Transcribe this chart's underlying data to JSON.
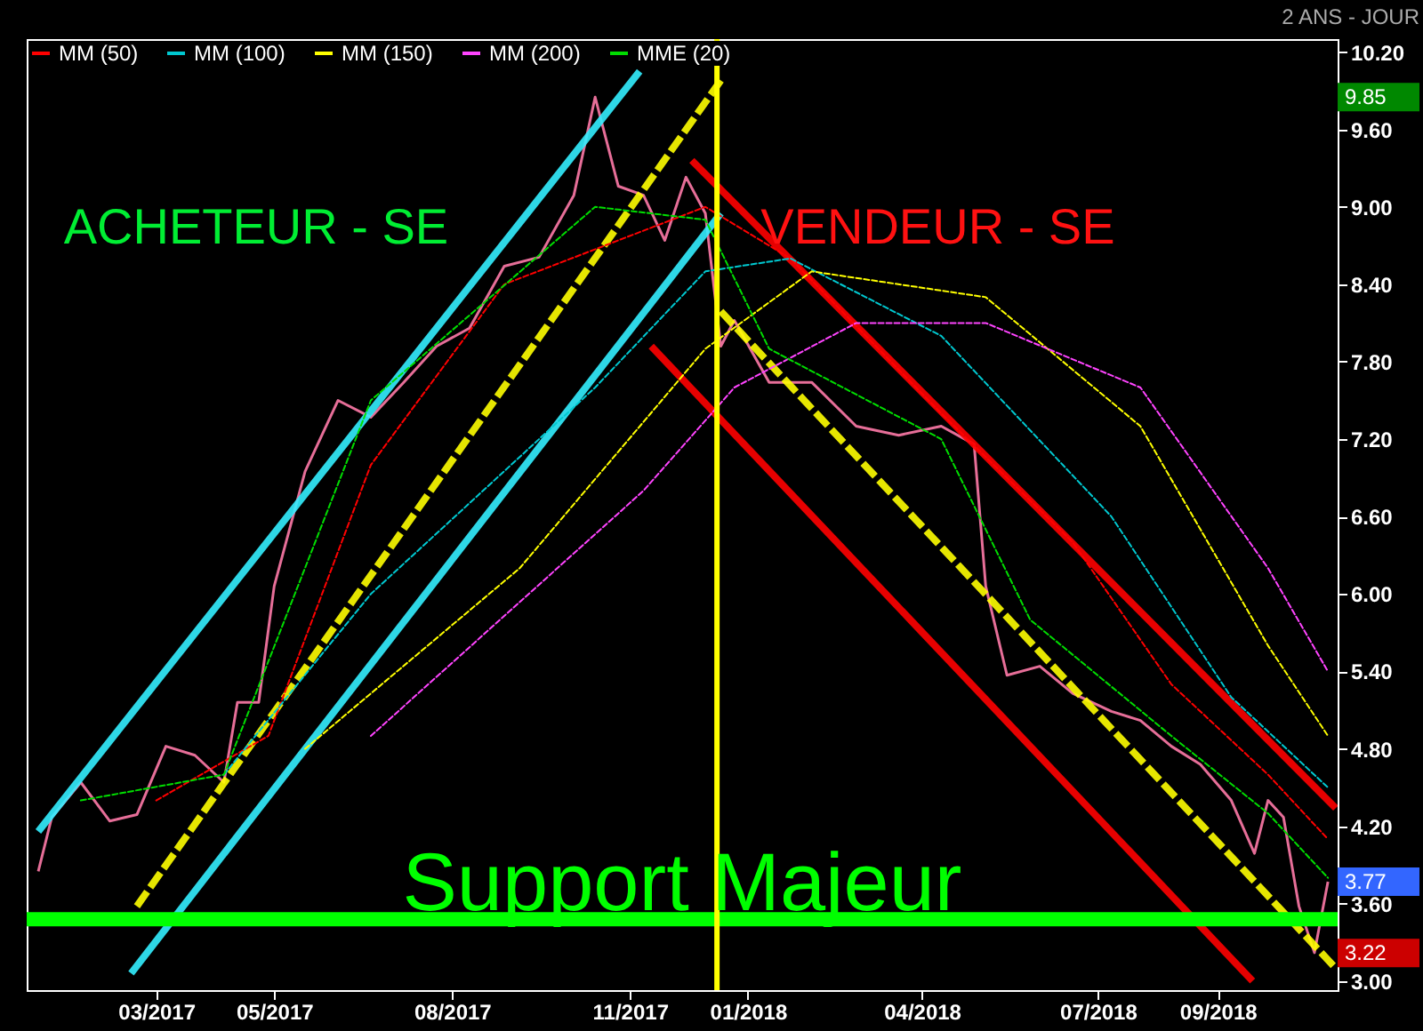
{
  "chart_data": {
    "type": "line",
    "title": "2 ANS - JOUR",
    "xlim": [
      "2016-12-24",
      "2018-11-02"
    ],
    "xticks": [
      {
        "value": "2017-03-01",
        "label": "03/2017"
      },
      {
        "value": "2017-05-01",
        "label": "05/2017"
      },
      {
        "value": "2017-08-01",
        "label": "08/2017"
      },
      {
        "value": "2017-11-01",
        "label": "11/2017"
      },
      {
        "value": "2018-01-01",
        "label": "01/2018"
      },
      {
        "value": "2018-04-01",
        "label": "04/2018"
      },
      {
        "value": "2018-07-01",
        "label": "07/2018"
      },
      {
        "value": "2018-09-01",
        "label": "09/2018"
      }
    ],
    "ylim": [
      2.93,
      10.3
    ],
    "yticks": [
      {
        "value": 3,
        "label": "3.00"
      },
      {
        "value": 3.6,
        "label": "3.60"
      },
      {
        "value": 4.2,
        "label": "4.20"
      },
      {
        "value": 4.8,
        "label": "4.80"
      },
      {
        "value": 5.4,
        "label": "5.40"
      },
      {
        "value": 6,
        "label": "6.00"
      },
      {
        "value": 6.6,
        "label": "6.60"
      },
      {
        "value": 7.2,
        "label": "7.20"
      },
      {
        "value": 7.8,
        "label": "7.80"
      },
      {
        "value": 8.4,
        "label": "8.40"
      },
      {
        "value": 9,
        "label": "9.00"
      },
      {
        "value": 9.6,
        "label": "9.60"
      },
      {
        "value": 10.2,
        "label": "10.20"
      }
    ],
    "grid": false,
    "legend": "top left",
    "series": [
      {
        "color": "#ff7aa8",
        "line_style": "solid",
        "x": [
          "2016-12-30",
          "2017-01-06",
          "2017-01-21",
          "2017-02-05",
          "2017-02-19",
          "2017-03-06",
          "2017-03-21",
          "2017-04-05",
          "2017-04-12",
          "2017-04-23",
          "2017-05-01",
          "2017-05-17",
          "2017-06-03",
          "2017-06-20",
          "2017-07-07",
          "2017-07-24",
          "2017-08-10",
          "2017-08-28",
          "2017-09-15",
          "2017-10-03",
          "2017-10-14",
          "2017-10-26",
          "2017-11-08",
          "2017-11-19",
          "2017-11-30",
          "2017-12-10",
          "2017-12-18",
          "2017-12-25",
          "2018-01-12",
          "2018-02-03",
          "2018-02-26",
          "2018-03-20",
          "2018-04-11",
          "2018-04-28",
          "2018-05-04",
          "2018-05-15",
          "2018-06-01",
          "2018-06-18",
          "2018-07-08",
          "2018-07-23",
          "2018-08-08",
          "2018-08-23",
          "2018-09-08",
          "2018-09-20",
          "2018-09-27",
          "2018-10-05",
          "2018-10-13",
          "2018-10-21",
          "2018-10-28"
        ],
        "values": [
          3.85,
          4.27,
          4.54,
          4.24,
          4.29,
          4.82,
          4.75,
          4.54,
          5.16,
          5.16,
          6.06,
          6.95,
          7.5,
          7.37,
          7.64,
          7.92,
          8.06,
          8.54,
          8.61,
          9.09,
          9.85,
          9.16,
          9.09,
          8.74,
          9.23,
          8.95,
          7.92,
          8.12,
          7.64,
          7.64,
          7.3,
          7.23,
          7.3,
          7.16,
          6.06,
          5.37,
          5.44,
          5.23,
          5.09,
          5.02,
          4.82,
          4.68,
          4.4,
          3.99,
          4.4,
          4.27,
          3.58,
          3.22,
          3.77
        ]
      },
      {
        "name": "MM (50)",
        "color": "#ff0000",
        "line_style": "dashed",
        "x": [
          "2017-03-01",
          "2017-04-28",
          "2017-06-20",
          "2017-08-28",
          "2017-12-10",
          "2018-01-23",
          "2018-04-11",
          "2018-06-18",
          "2018-08-08",
          "2018-09-27",
          "2018-10-28"
        ],
        "values": [
          4.4,
          4.9,
          7.0,
          8.4,
          9.0,
          8.6,
          7.4,
          6.4,
          5.3,
          4.6,
          4.1
        ]
      },
      {
        "name": "MM (100)",
        "color": "#00c8d0",
        "line_style": "dashed",
        "x": [
          "2017-04-05",
          "2017-06-20",
          "2017-10-14",
          "2017-12-10",
          "2018-01-23",
          "2018-04-11",
          "2018-07-08",
          "2018-09-08",
          "2018-10-28"
        ],
        "values": [
          4.6,
          6.0,
          7.6,
          8.5,
          8.6,
          8.0,
          6.6,
          5.2,
          4.5
        ]
      },
      {
        "name": "MM (150)",
        "color": "#ffff00",
        "line_style": "dashed",
        "x": [
          "2017-05-17",
          "2017-09-05",
          "2017-12-10",
          "2018-02-03",
          "2018-05-04",
          "2018-07-23",
          "2018-09-27",
          "2018-10-28"
        ],
        "values": [
          4.8,
          6.2,
          7.9,
          8.5,
          8.3,
          7.3,
          5.6,
          4.9
        ]
      },
      {
        "name": "MM (200)",
        "color": "#ff44ff",
        "line_style": "dashed",
        "x": [
          "2017-06-20",
          "2017-11-08",
          "2017-12-25",
          "2018-02-26",
          "2018-05-04",
          "2018-07-23",
          "2018-09-27",
          "2018-10-28"
        ],
        "values": [
          4.9,
          6.8,
          7.6,
          8.1,
          8.1,
          7.6,
          6.2,
          5.4
        ]
      },
      {
        "name": "MME (20)",
        "color": "#00dd00",
        "line_style": "dashed",
        "x": [
          "2017-01-21",
          "2017-04-05",
          "2017-06-20",
          "2017-10-14",
          "2017-12-10",
          "2018-01-12",
          "2018-04-11",
          "2018-05-27",
          "2018-08-08",
          "2018-09-27",
          "2018-10-28"
        ],
        "values": [
          4.4,
          4.6,
          7.5,
          9.0,
          8.9,
          7.9,
          7.2,
          5.8,
          4.9,
          4.3,
          3.8
        ]
      },
      {
        "color": "#33eeff",
        "line_style": "solid",
        "x": [
          "2017-02-16",
          "2017-12-18"
        ],
        "values": [
          3.06,
          8.95
        ]
      },
      {
        "color": "#33eeff",
        "line_style": "solid",
        "x": [
          "2016-12-30",
          "2017-11-06"
        ],
        "values": [
          4.16,
          10.05
        ]
      },
      {
        "color": "#ffff00",
        "line_style": "dashed",
        "x": [
          "2017-02-19",
          "2017-12-18"
        ],
        "values": [
          3.58,
          9.98
        ]
      },
      {
        "color": "#ff0000",
        "line_style": "solid",
        "x": [
          "2017-12-03",
          "2018-11-01"
        ],
        "values": [
          9.36,
          4.34
        ]
      },
      {
        "color": "#ff0000",
        "line_style": "solid",
        "x": [
          "2017-11-12",
          "2018-09-19"
        ],
        "values": [
          7.92,
          3.0
        ]
      },
      {
        "color": "#ffff00",
        "line_style": "dashed",
        "x": [
          "2017-12-18",
          "2018-11-01"
        ],
        "values": [
          8.19,
          3.1
        ]
      }
    ],
    "ref_lines": [
      {
        "axis": "y",
        "value": 3.48,
        "color": "#00ff00"
      },
      {
        "axis": "x",
        "value": "2017-12-16",
        "color": "#ffff00"
      }
    ],
    "annotations": [
      "ACHETEUR - SE",
      "VENDEUR - SE",
      "Support Majeur",
      "9.85",
      "3.77",
      "3.22"
    ]
  }
}
